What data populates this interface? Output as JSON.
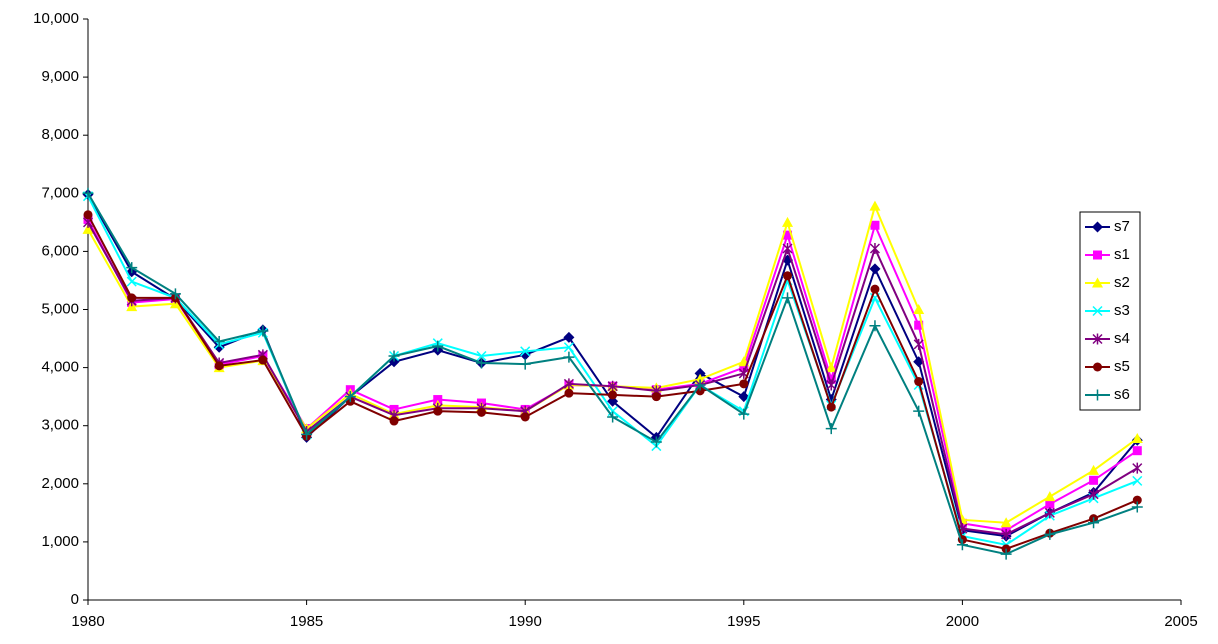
{
  "chart_data": {
    "type": "line",
    "x": [
      1980,
      1981,
      1982,
      1983,
      1984,
      1985,
      1986,
      1987,
      1988,
      1989,
      1990,
      1991,
      1992,
      1993,
      1994,
      1995,
      1996,
      1997,
      1998,
      1999,
      2000,
      2001,
      2002,
      2003,
      2004
    ],
    "series": [
      {
        "name": "s7",
        "color": "#000080",
        "marker": "diamond",
        "values": [
          6980,
          5650,
          5180,
          4350,
          4650,
          2800,
          3500,
          4100,
          4300,
          4080,
          4220,
          4520,
          3420,
          2800,
          3900,
          3500,
          5850,
          3450,
          5700,
          4100,
          1200,
          1100,
          1500,
          1850,
          2750
        ]
      },
      {
        "name": "s1",
        "color": "#ff00ff",
        "marker": "square",
        "values": [
          6550,
          5120,
          5180,
          4050,
          4200,
          2950,
          3620,
          3280,
          3450,
          3390,
          3280,
          3700,
          3680,
          3620,
          3720,
          4000,
          6280,
          3800,
          6450,
          4730,
          1320,
          1200,
          1650,
          2060,
          2570
        ]
      },
      {
        "name": "s2",
        "color": "#ffff00",
        "marker": "triangle",
        "values": [
          6380,
          5050,
          5100,
          4000,
          4120,
          2950,
          3550,
          3200,
          3350,
          3320,
          3250,
          3700,
          3680,
          3650,
          3800,
          4100,
          6500,
          4000,
          6780,
          5000,
          1380,
          1330,
          1780,
          2230,
          2780
        ]
      },
      {
        "name": "s3",
        "color": "#00ffff",
        "marker": "x",
        "values": [
          6950,
          5480,
          5200,
          4400,
          4600,
          2850,
          3500,
          4200,
          4420,
          4200,
          4280,
          4350,
          3250,
          2650,
          3700,
          3250,
          5500,
          3350,
          5200,
          3700,
          1100,
          950,
          1450,
          1750,
          2050
        ]
      },
      {
        "name": "s4",
        "color": "#800080",
        "marker": "asterisk",
        "values": [
          6500,
          5150,
          5200,
          4080,
          4220,
          2900,
          3500,
          3180,
          3300,
          3300,
          3250,
          3720,
          3680,
          3600,
          3700,
          3900,
          6050,
          3700,
          6050,
          4400,
          1230,
          1130,
          1500,
          1820,
          2270
        ]
      },
      {
        "name": "s5",
        "color": "#800000",
        "marker": "circle",
        "values": [
          6630,
          5200,
          5200,
          4030,
          4130,
          2820,
          3420,
          3080,
          3250,
          3230,
          3150,
          3560,
          3530,
          3500,
          3600,
          3720,
          5580,
          3320,
          5350,
          3760,
          1040,
          880,
          1150,
          1400,
          1720
        ]
      },
      {
        "name": "s6",
        "color": "#008080",
        "marker": "plus",
        "values": [
          7000,
          5720,
          5270,
          4450,
          4630,
          2850,
          3500,
          4200,
          4370,
          4080,
          4060,
          4180,
          3150,
          2720,
          3700,
          3200,
          5200,
          2950,
          4720,
          3250,
          950,
          790,
          1130,
          1330,
          1600
        ]
      }
    ],
    "xlim": [
      1980,
      2005
    ],
    "xticks": [
      1980,
      1985,
      1990,
      1995,
      2000,
      2005
    ],
    "ylim": [
      0,
      10000
    ],
    "yticks": [
      0,
      {
        "value": 1000,
        "label": "1,000"
      },
      {
        "value": 2000,
        "label": "2,000"
      },
      {
        "value": 3000,
        "label": "3,000"
      },
      {
        "value": 4000,
        "label": "4,000"
      },
      {
        "value": 5000,
        "label": "5,000"
      },
      {
        "value": 6000,
        "label": "6,000"
      },
      {
        "value": 7000,
        "label": "7,000"
      },
      {
        "value": 8000,
        "label": "8,000"
      },
      {
        "value": 9000,
        "label": "9,000"
      },
      {
        "value": 10000,
        "label": "10,000"
      }
    ],
    "grid": false,
    "legend": "right"
  }
}
